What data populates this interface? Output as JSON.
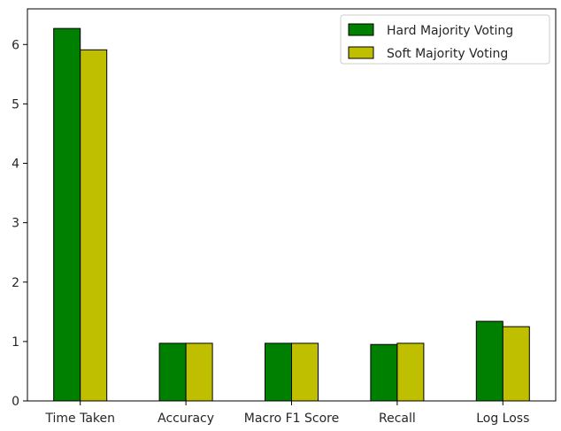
{
  "chart_data": {
    "type": "bar",
    "title": "",
    "xlabel": "",
    "ylabel": "",
    "categories": [
      "Time Taken",
      "Accuracy",
      "Macro F1 Score",
      "Recall",
      "Log Loss"
    ],
    "series": [
      {
        "name": "Hard Majority Voting",
        "color": "#008000",
        "values": [
          6.27,
          0.97,
          0.97,
          0.95,
          1.34
        ]
      },
      {
        "name": "Soft Majority Voting",
        "color": "#bfbf00",
        "values": [
          5.91,
          0.97,
          0.97,
          0.97,
          1.25
        ]
      }
    ],
    "ylim": [
      0,
      6.6
    ],
    "yticks": [
      0,
      1,
      2,
      3,
      4,
      5,
      6
    ],
    "grid": false,
    "legend_position": "top-right"
  }
}
